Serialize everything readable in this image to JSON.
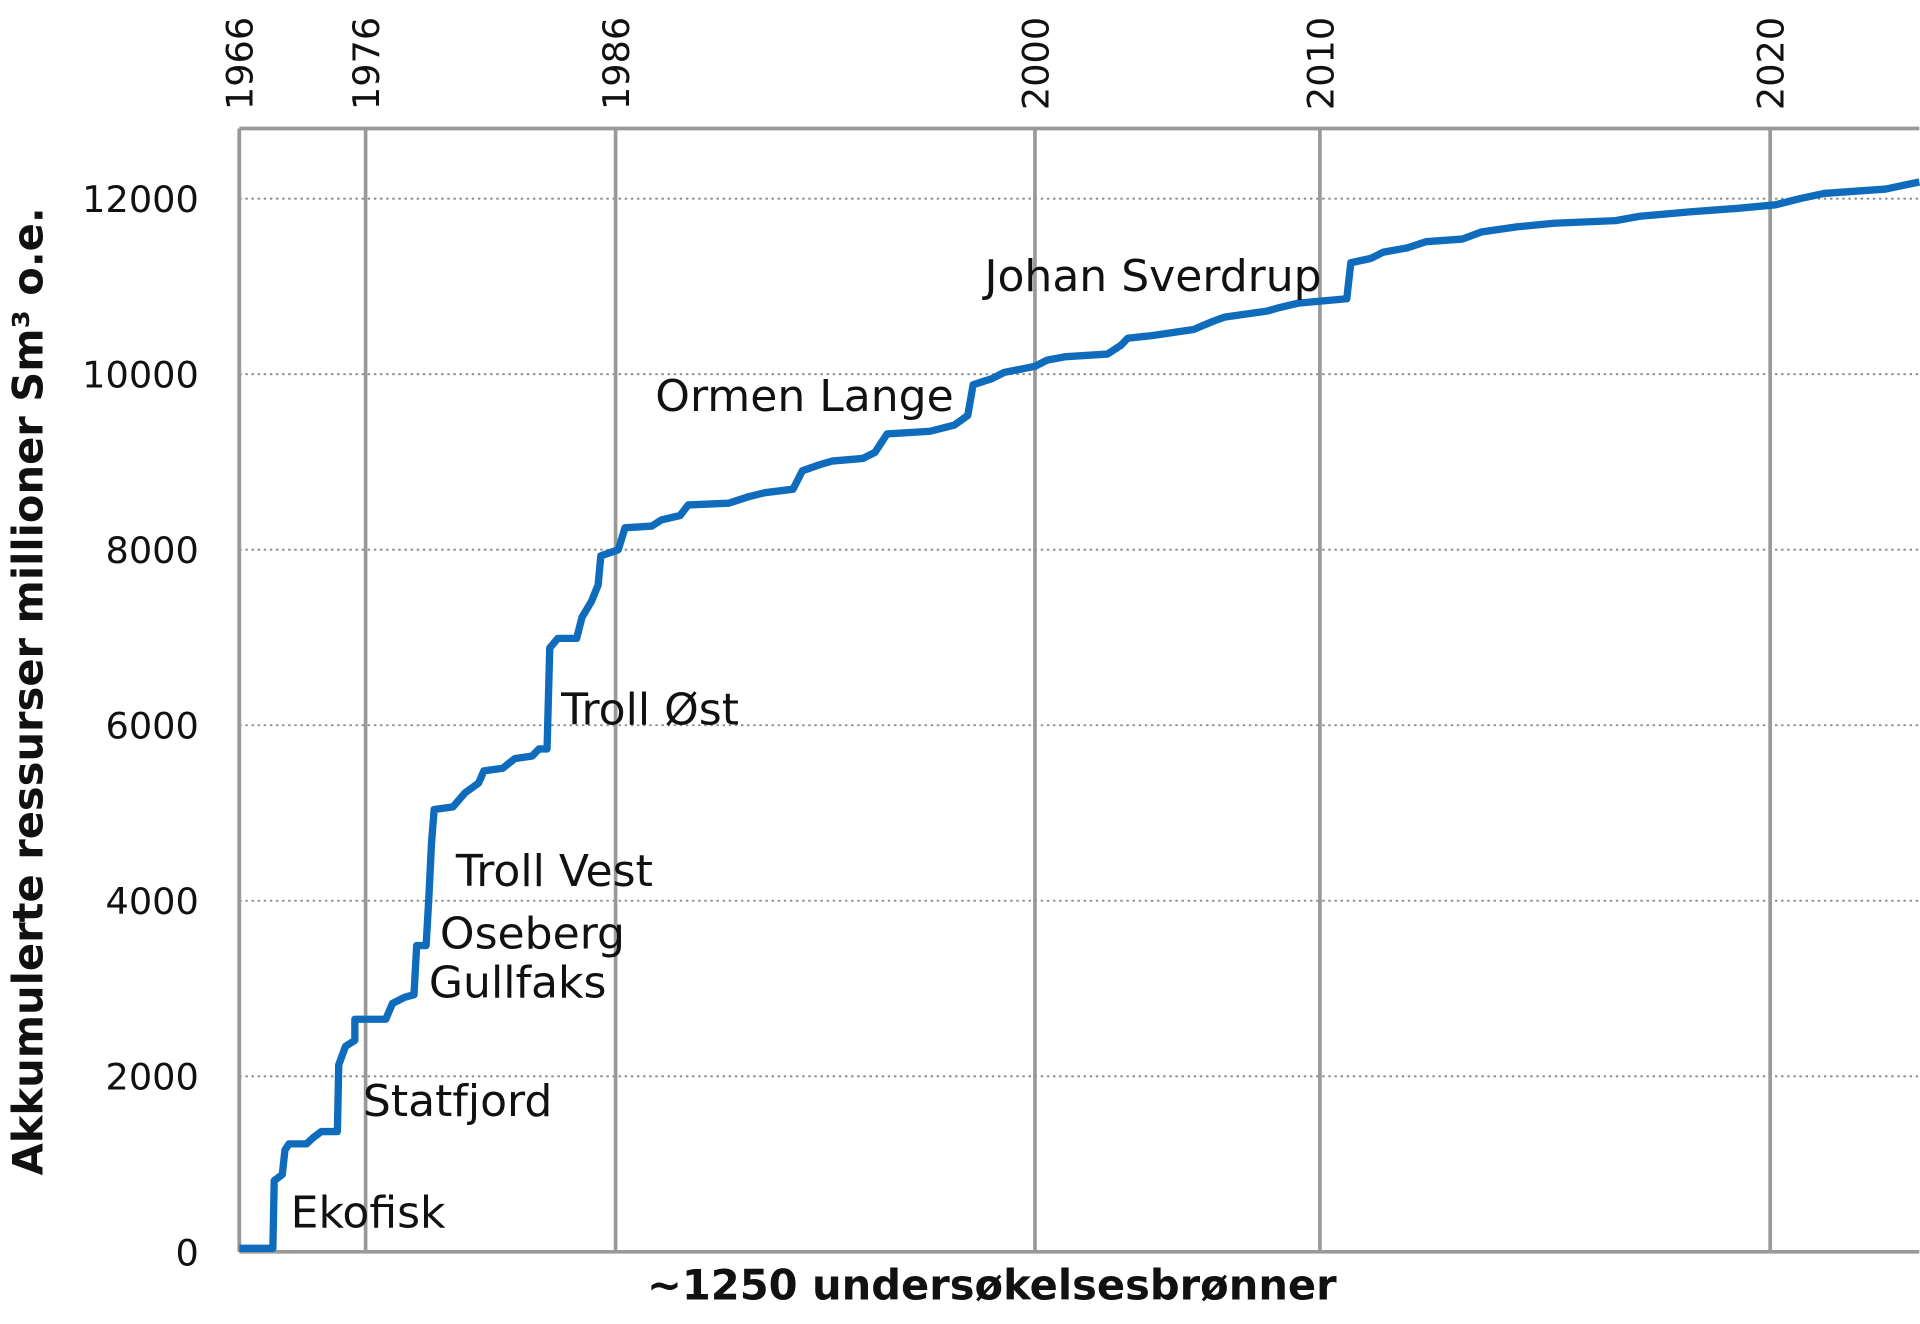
{
  "chart_data": {
    "type": "line",
    "x_label": "~1250 undersøkelsesbrønner",
    "y_label": "Akkumulerte ressurser millioner Sm³ o.e.",
    "xlim": [
      0,
      1250
    ],
    "ylim": [
      0,
      12800
    ],
    "yticks": [
      0,
      2000,
      4000,
      6000,
      8000,
      10000,
      12000
    ],
    "xticks_top": [
      {
        "value": 0,
        "label": "1966"
      },
      {
        "value": 94,
        "label": "1976"
      },
      {
        "value": 280,
        "label": "1986"
      },
      {
        "value": 592,
        "label": "2000"
      },
      {
        "value": 804,
        "label": "2010"
      },
      {
        "value": 1139,
        "label": "2020"
      }
    ],
    "grid": true,
    "annotations": [
      "Ekofisk",
      "Statfjord",
      "Gullfaks",
      "Oseberg",
      "Troll Vest",
      "Troll Øst",
      "Ormen Lange",
      "Johan Sverdrup"
    ],
    "x": [
      0,
      25,
      26,
      32,
      34,
      37,
      50,
      55,
      61,
      73,
      74,
      79,
      86,
      86,
      109,
      114,
      123,
      130,
      132,
      139,
      141,
      143,
      145,
      159,
      168,
      178,
      182,
      196,
      205,
      218,
      223,
      229,
      231,
      237,
      251,
      255,
      262,
      267,
      269,
      282,
      287,
      307,
      314,
      328,
      334,
      364,
      378,
      391,
      412,
      419,
      432,
      441,
      464,
      473,
      482,
      514,
      532,
      542,
      546,
      560,
      569,
      592,
      601,
      615,
      646,
      656,
      661,
      679,
      710,
      724,
      733,
      765,
      774,
      788,
      824,
      827,
      842,
      851,
      869,
      883,
      910,
      924,
      951,
      978,
      1024,
      1042,
      1079,
      1115,
      1143,
      1161,
      1179,
      1225,
      1250
    ],
    "series": [
      {
        "name": "Akkumulerte ressurser",
        "color": "#0f6cbd",
        "values": [
          40,
          40,
          810,
          880,
          1160,
          1230,
          1230,
          1300,
          1370,
          1370,
          2130,
          2340,
          2410,
          2650,
          2650,
          2830,
          2900,
          2930,
          3490,
          3490,
          4020,
          4650,
          5040,
          5070,
          5230,
          5340,
          5480,
          5510,
          5620,
          5650,
          5730,
          5730,
          6880,
          6990,
          6990,
          7230,
          7410,
          7600,
          7930,
          8000,
          8250,
          8270,
          8340,
          8390,
          8510,
          8530,
          8600,
          8650,
          8690,
          8900,
          8970,
          9010,
          9040,
          9110,
          9320,
          9350,
          9420,
          9530,
          9880,
          9950,
          10020,
          10090,
          10160,
          10200,
          10230,
          10330,
          10410,
          10440,
          10510,
          10600,
          10650,
          10720,
          10760,
          10810,
          10860,
          11270,
          11320,
          11390,
          11440,
          11510,
          11540,
          11620,
          11680,
          11720,
          11750,
          11800,
          11850,
          11890,
          11930,
          12000,
          12060,
          12110,
          12190
        ]
      }
    ]
  }
}
